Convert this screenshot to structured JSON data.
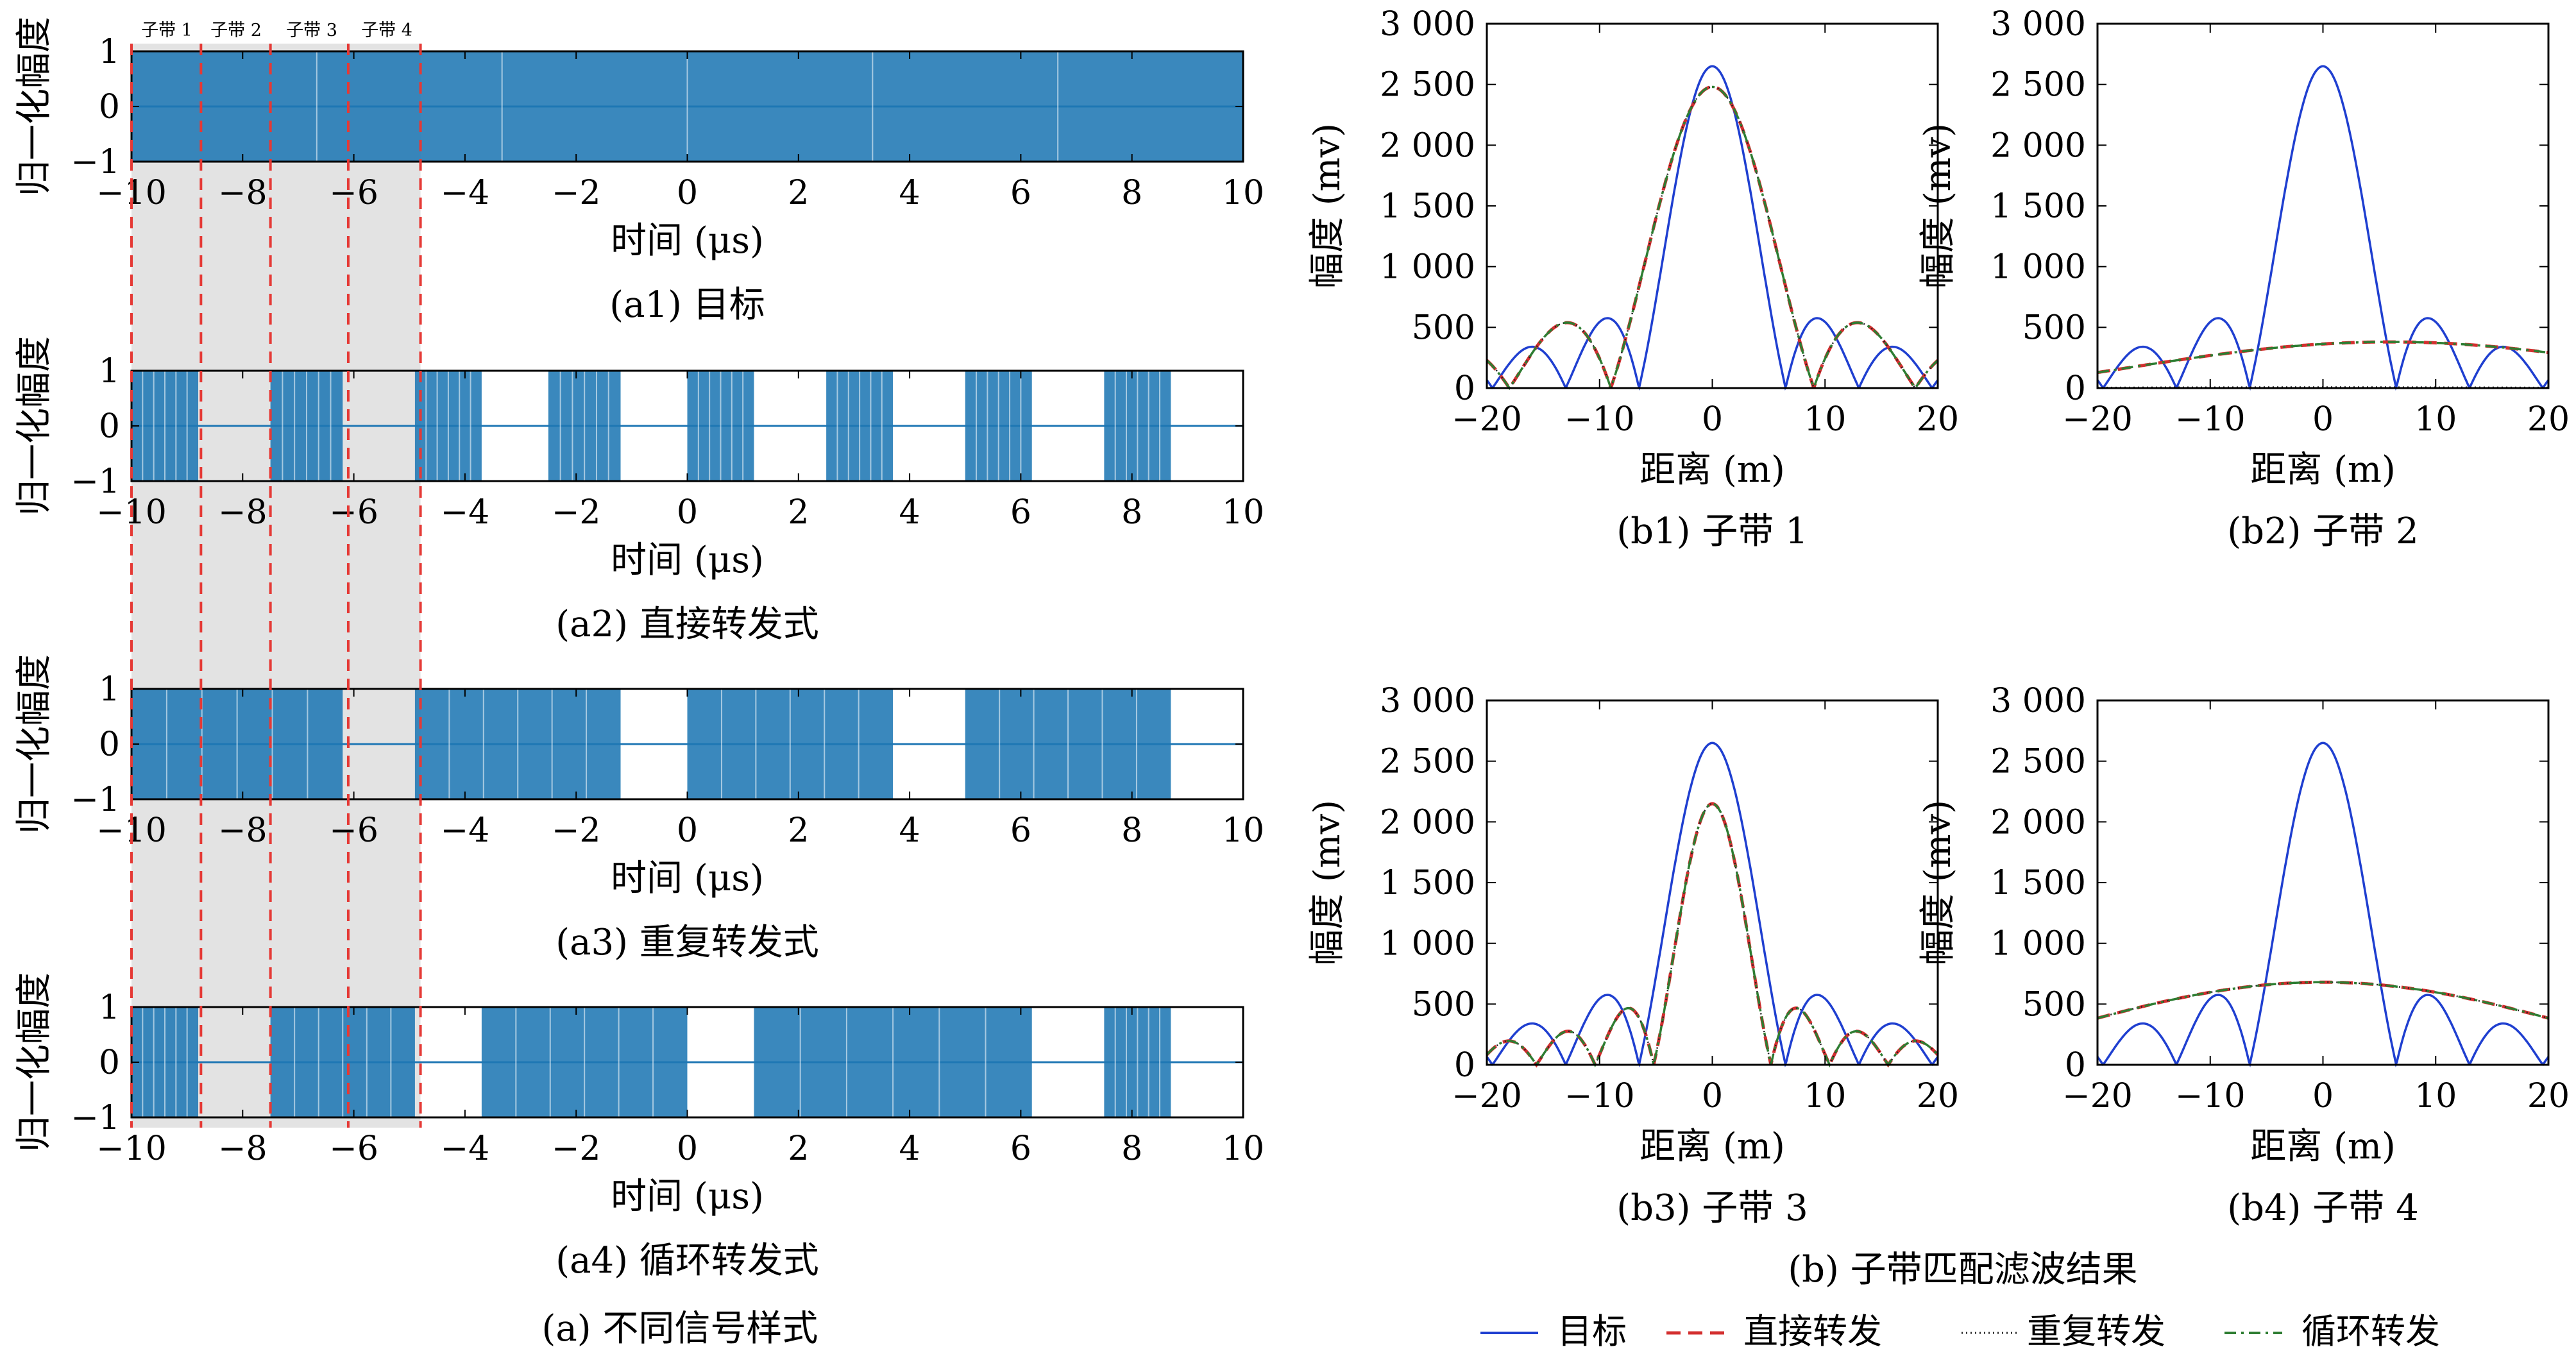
{
  "colors": {
    "waveform": "#1f77b4",
    "subband_line": "#e53935",
    "shade": "#e3e3e3",
    "target": "#1f3fd0",
    "direct": "#d32f2f",
    "repeat": "#222222",
    "cyclic": "#2e7d32"
  },
  "figure_a": {
    "caption": "(a) 不同信号样式",
    "subband_labels": [
      "子带 1",
      "子带 2",
      "子带 3",
      "子带 4"
    ],
    "subband_boundaries_us": [
      -10,
      -8.75,
      -7.5,
      -6.1,
      -4.8
    ],
    "shaded_region_us": [
      -10,
      -4.8
    ]
  },
  "figure_b": {
    "caption": "(b) 子带匹配滤波结果",
    "legend": [
      "目标",
      "直接转发",
      "重复转发",
      "循环转发"
    ]
  },
  "chart_data": [
    {
      "id": "a1",
      "type": "line",
      "caption": "(a1) 目标",
      "xlabel": "时间 (μs)",
      "ylabel": "归一化幅度",
      "xlim": [
        -10,
        10
      ],
      "ylim": [
        -1,
        1
      ],
      "xticks": [
        "−10",
        "−8",
        "−6",
        "−4",
        "−2",
        "0",
        "2",
        "4",
        "6",
        "8",
        "10"
      ],
      "yticks": [
        "1",
        "0",
        "−1"
      ],
      "filled_segments_us": [
        [
          -10,
          10
        ]
      ]
    },
    {
      "id": "a2",
      "type": "line",
      "caption": "(a2) 直接转发式",
      "xlabel": "时间 (μs)",
      "ylabel": "归一化幅度",
      "xlim": [
        -10,
        10
      ],
      "ylim": [
        -1,
        1
      ],
      "xticks": [
        "−10",
        "−8",
        "−6",
        "−4",
        "−2",
        "0",
        "2",
        "4",
        "6",
        "8",
        "10"
      ],
      "yticks": [
        "1",
        "0",
        "−1"
      ],
      "filled_segments_us": [
        [
          -10,
          -8.8
        ],
        [
          -7.5,
          -6.2
        ],
        [
          -4.9,
          -3.7
        ],
        [
          -2.5,
          -1.2
        ],
        [
          0,
          1.2
        ],
        [
          2.5,
          3.7
        ],
        [
          5,
          6.2
        ],
        [
          7.5,
          8.7
        ]
      ]
    },
    {
      "id": "a3",
      "type": "line",
      "caption": "(a3) 重复转发式",
      "xlabel": "时间 (μs)",
      "ylabel": "归一化幅度",
      "xlim": [
        -10,
        10
      ],
      "ylim": [
        -1,
        1
      ],
      "xticks": [
        "−10",
        "−8",
        "−6",
        "−4",
        "−2",
        "0",
        "2",
        "4",
        "6",
        "8",
        "10"
      ],
      "yticks": [
        "1",
        "0",
        "−1"
      ],
      "filled_segments_us": [
        [
          -10,
          -6.2
        ],
        [
          -4.9,
          -1.2
        ],
        [
          0,
          3.7
        ],
        [
          5,
          8.7
        ]
      ]
    },
    {
      "id": "a4",
      "type": "line",
      "caption": "(a4) 循环转发式",
      "xlabel": "时间 (μs)",
      "ylabel": "归一化幅度",
      "xlim": [
        -10,
        10
      ],
      "ylim": [
        -1,
        1
      ],
      "xticks": [
        "−10",
        "−8",
        "−6",
        "−4",
        "−2",
        "0",
        "2",
        "4",
        "6",
        "8",
        "10"
      ],
      "yticks": [
        "1",
        "0",
        "−1"
      ],
      "filled_segments_us": [
        [
          -10,
          -8.8
        ],
        [
          -7.5,
          -4.9
        ],
        [
          -3.7,
          0
        ],
        [
          1.2,
          6.2
        ],
        [
          7.5,
          8.7
        ]
      ]
    },
    {
      "id": "b1",
      "type": "line",
      "caption": "(b1) 子带 1",
      "xlabel": "距离 (m)",
      "ylabel": "幅度 (mv)",
      "xlim": [
        -20,
        20
      ],
      "ylim": [
        0,
        3000
      ],
      "xticks": [
        "−20",
        "−10",
        "0",
        "10",
        "20"
      ],
      "yticks": [
        "0",
        "500",
        "1 000",
        "1 500",
        "2 000",
        "2 500",
        "3 000"
      ],
      "series": [
        {
          "name": "目标",
          "peak": 2650,
          "null_spacing_m": 6.5
        },
        {
          "name": "直接转发",
          "peak": 2480,
          "null_spacing_m": 9
        },
        {
          "name": "重复转发",
          "peak": 2480,
          "null_spacing_m": 9
        },
        {
          "name": "循环转发",
          "peak": 2480,
          "null_spacing_m": 9
        }
      ]
    },
    {
      "id": "b2",
      "type": "line",
      "caption": "(b2) 子带 2",
      "xlabel": "距离 (m)",
      "ylabel": "幅度 (mv)",
      "xlim": [
        -20,
        20
      ],
      "ylim": [
        0,
        3000
      ],
      "xticks": [
        "−20",
        "−10",
        "0",
        "10",
        "20"
      ],
      "yticks": [
        "0",
        "500",
        "1 000",
        "1 500",
        "2 000",
        "2 500",
        "3 000"
      ],
      "series": [
        {
          "name": "目标",
          "peak": 2650,
          "null_spacing_m": 6.5
        },
        {
          "name": "直接转发",
          "peak": 380,
          "center_m": 6,
          "null_spacing_m": 36
        },
        {
          "name": "重复转发",
          "peak": 8,
          "center_m": 0,
          "null_spacing_m": 36
        },
        {
          "name": "循环转发",
          "peak": 380,
          "center_m": 6,
          "null_spacing_m": 36
        }
      ]
    },
    {
      "id": "b3",
      "type": "line",
      "caption": "(b3) 子带 3",
      "xlabel": "距离 (m)",
      "ylabel": "幅度 (mv)",
      "xlim": [
        -20,
        20
      ],
      "ylim": [
        0,
        3000
      ],
      "xticks": [
        "−20",
        "−10",
        "0",
        "10",
        "20"
      ],
      "yticks": [
        "0",
        "500",
        "1 000",
        "1 500",
        "2 000",
        "2 500",
        "3 000"
      ],
      "series": [
        {
          "name": "目标",
          "peak": 2650,
          "null_spacing_m": 6.5
        },
        {
          "name": "直接转发",
          "peak": 2150,
          "null_spacing_m": 5.2
        },
        {
          "name": "重复转发",
          "peak": 2150,
          "null_spacing_m": 5.2
        },
        {
          "name": "循环转发",
          "peak": 2150,
          "null_spacing_m": 5.2
        }
      ]
    },
    {
      "id": "b4",
      "type": "line",
      "caption": "(b4) 子带 4",
      "xlabel": "距离 (m)",
      "ylabel": "幅度 (mv)",
      "xlim": [
        -20,
        20
      ],
      "ylim": [
        0,
        3000
      ],
      "xticks": [
        "−20",
        "−10",
        "0",
        "10",
        "20"
      ],
      "yticks": [
        "0",
        "500",
        "1 000",
        "1 500",
        "2 000",
        "2 500",
        "3 000"
      ],
      "series": [
        {
          "name": "目标",
          "peak": 2650,
          "null_spacing_m": 6.5
        },
        {
          "name": "直接转发",
          "peak": 680,
          "center_m": 0,
          "null_spacing_m": 36
        },
        {
          "name": "重复转发",
          "peak": 680,
          "center_m": 0,
          "null_spacing_m": 36
        },
        {
          "name": "循环转发",
          "peak": 680,
          "center_m": 0,
          "null_spacing_m": 36
        }
      ]
    }
  ]
}
